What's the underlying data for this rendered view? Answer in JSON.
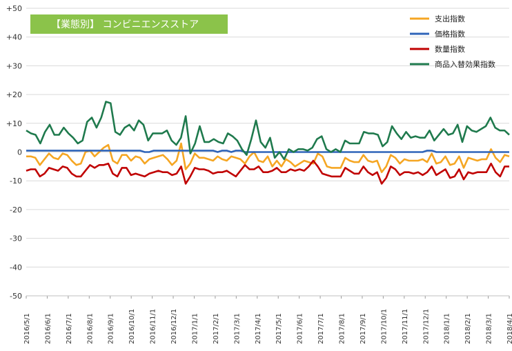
{
  "chart_data": {
    "type": "line",
    "title": "【業態別】 コンビニエンスストア",
    "title_bg_color": "#8BC34A",
    "ylim": [
      -50,
      50
    ],
    "y_ticks": [
      50,
      40,
      30,
      20,
      10,
      0,
      -10,
      -20,
      -30,
      -40,
      -50
    ],
    "y_tick_labels": [
      "+50",
      "+40",
      "+30",
      "+20",
      "+10",
      "0",
      "-10",
      "-20",
      "-30",
      "-40",
      "-50"
    ],
    "grid": true,
    "legend_position": "top-right",
    "x_tick_labels": [
      "2016/5/1",
      "2016/6/1",
      "2016/7/1",
      "2016/8/1",
      "2016/9/1",
      "2016/10/1",
      "2016/11/1",
      "2016/12/1",
      "2017/1/1",
      "2017/2/1",
      "2017/3/1",
      "2017/4/1",
      "2017/5/1",
      "2017/6/1",
      "2017/7/1",
      "2017/8/1",
      "2017/9/1",
      "2017/10/1",
      "2017/11/1",
      "2017/12/1",
      "2018/1/1",
      "2018/2/1",
      "2018/3/1",
      "2018/4/1"
    ],
    "series": [
      {
        "name": "支出指数",
        "color": "#F5A623",
        "values": [
          -1.5,
          -1.5,
          -2,
          -4.5,
          -2.5,
          -0.5,
          -2,
          -2.5,
          -0.5,
          -1,
          -3,
          -4.5,
          -4,
          0,
          0.5,
          -1.5,
          0,
          1.5,
          2.5,
          -3,
          -4,
          -1,
          -1,
          -3,
          -1.5,
          -2,
          -4,
          -2.5,
          -2,
          -1.5,
          -1,
          -2.5,
          -4.5,
          -3,
          3,
          -6,
          -4,
          -0.5,
          -2,
          -2,
          -2.5,
          -3,
          -1.5,
          -2.5,
          -3,
          -1.5,
          -2,
          -2.5,
          -4,
          -1.5,
          0,
          -3,
          -3.5,
          -1.5,
          -5,
          -3,
          -5,
          -2.5,
          -3.5,
          -5,
          -4,
          -3,
          -3.5,
          -4,
          -0.5,
          -1.5,
          -5,
          -5.5,
          -5.5,
          -5.5,
          -2,
          -3,
          -3.5,
          -3.5,
          -1,
          -3,
          -3.5,
          -3,
          -7,
          -5,
          -1,
          -2,
          -4,
          -2.5,
          -3,
          -3,
          -3,
          -2.5,
          -3.5,
          -0.5,
          -4,
          -3.5,
          -1.5,
          -4.5,
          -4,
          -1.5,
          -5.5,
          -2,
          -2.5,
          -3,
          -2.5,
          -2.5,
          1,
          -2,
          -3.5,
          -1,
          -1.5
        ],
        "note_ignore": ""
      },
      {
        "name": "価格指数",
        "color": "#2F64B8",
        "values": [
          0.5,
          0.5,
          0.5,
          0.5,
          0.5,
          0.5,
          0.5,
          0.5,
          0.5,
          0.5,
          0.5,
          0.5,
          0.5,
          0.5,
          0.5,
          0.5,
          0.5,
          0.5,
          0.5,
          0.5,
          0.5,
          0.5,
          0.5,
          0.5,
          0.5,
          0.5,
          0,
          0,
          0.5,
          0.5,
          0.5,
          0.5,
          0.5,
          0.5,
          0.5,
          0.5,
          0.5,
          0.5,
          0.5,
          0.5,
          0.5,
          0.5,
          0,
          0.5,
          0.5,
          0,
          0.5,
          0.5,
          0,
          0,
          0,
          0,
          0,
          0,
          0,
          0,
          0,
          0,
          0,
          0,
          0,
          0,
          0,
          0,
          0,
          0,
          0,
          0,
          0,
          0,
          0,
          0,
          0,
          0,
          0,
          0,
          0,
          0,
          0,
          0,
          0,
          0,
          0,
          0,
          0,
          0,
          0,
          0,
          0.5,
          0.5,
          0,
          0,
          0,
          0,
          0,
          0,
          0,
          0,
          0,
          0,
          0,
          0,
          0,
          0,
          0,
          0,
          0
        ],
        "note_ignore": ""
      },
      {
        "name": "数量指数",
        "color": "#C00000",
        "values": [
          -6.5,
          -6,
          -6,
          -8.5,
          -7.5,
          -5.5,
          -6,
          -6.5,
          -5,
          -5.5,
          -7.5,
          -8.5,
          -8.5,
          -6.5,
          -4.5,
          -5.5,
          -4.5,
          -4.5,
          -4,
          -7.5,
          -8.5,
          -5.5,
          -5.5,
          -8,
          -7.5,
          -8,
          -8.5,
          -7.5,
          -7,
          -6.5,
          -7,
          -7,
          -8,
          -7.5,
          -5,
          -11,
          -8.5,
          -5.5,
          -6,
          -6,
          -6.5,
          -7.5,
          -7,
          -7,
          -6.5,
          -7.5,
          -8.5,
          -6.5,
          -4.5,
          -6,
          -6,
          -5,
          -7,
          -7,
          -6.5,
          -5.5,
          -7,
          -7,
          -6,
          -6.5,
          -6,
          -6.5,
          -5,
          -3,
          -5,
          -7.5,
          -8,
          -8.5,
          -8.5,
          -8.5,
          -5.5,
          -6.5,
          -7.5,
          -7.5,
          -5,
          -7,
          -8,
          -7,
          -11,
          -9,
          -5,
          -6,
          -8,
          -7,
          -7,
          -7.5,
          -7,
          -8,
          -7,
          -5,
          -8,
          -7,
          -6,
          -9,
          -8.5,
          -6,
          -9.5,
          -7,
          -7.5,
          -7,
          -7,
          -7,
          -4,
          -7,
          -8.5,
          -5,
          -5
        ],
        "note_ignore": ""
      },
      {
        "name": "商品入替効果指数",
        "color": "#1F7A4D",
        "values": [
          7.5,
          6.5,
          6,
          3,
          7,
          9.5,
          6,
          6,
          8.5,
          6.5,
          5,
          3,
          4,
          10.5,
          12,
          8.5,
          12,
          17.5,
          17,
          7,
          6,
          8.5,
          9.5,
          7.5,
          11,
          9.5,
          4,
          6.5,
          6.5,
          6.5,
          7.5,
          4,
          2.5,
          5,
          12.5,
          -0.5,
          3,
          9,
          3.5,
          3.5,
          4.5,
          3.5,
          3,
          6.5,
          5.5,
          4,
          1,
          -1,
          4.5,
          11,
          3.5,
          1.5,
          5,
          -2,
          0,
          -2.5,
          1,
          0,
          1,
          1,
          0.5,
          1.5,
          4.5,
          5.5,
          1,
          0,
          1,
          0,
          4,
          3,
          3,
          3,
          7,
          6.5,
          6.5,
          6,
          2,
          3.5,
          9,
          6.5,
          4.5,
          7,
          5,
          5.5,
          5,
          5,
          7.5,
          4,
          6,
          8,
          6,
          6.5,
          9.5,
          3.5,
          9,
          7.5,
          7,
          8,
          9,
          12,
          8.5,
          7.5,
          7.5,
          6
        ],
        "note_ignore": ""
      }
    ]
  }
}
